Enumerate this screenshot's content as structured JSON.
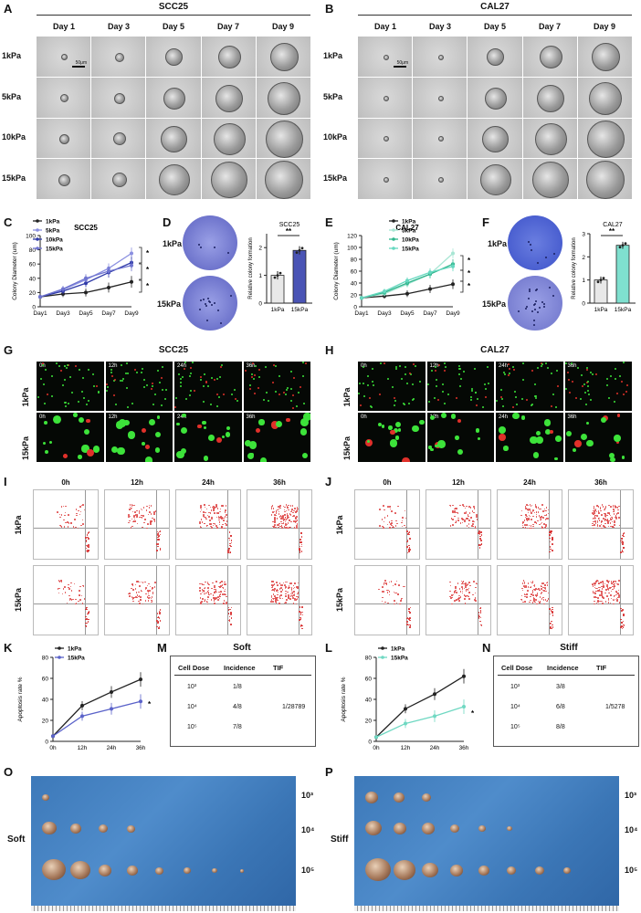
{
  "panels": {
    "A": "A",
    "B": "B",
    "C": "C",
    "D": "D",
    "E": "E",
    "F": "F",
    "G": "G",
    "H": "H",
    "I": "I",
    "J": "J",
    "K": "K",
    "L": "L",
    "M": "M",
    "N": "N",
    "O": "O",
    "P": "P"
  },
  "spheroid": {
    "left_title": "SCC25",
    "right_title": "CAL27",
    "days": [
      "Day 1",
      "Day 3",
      "Day 5",
      "Day 7",
      "Day 9"
    ],
    "stiffness": [
      "1kPa",
      "5kPa",
      "10kPa",
      "15kPa"
    ],
    "scale_label": "50μm"
  },
  "live_dead": {
    "left_title": "SCC25",
    "right_title": "CAL27",
    "rows": [
      "1kPa",
      "15kPa"
    ],
    "times": [
      "0h",
      "12h",
      "24h",
      "36h"
    ]
  },
  "flow": {
    "times": [
      "0h",
      "12h",
      "24h",
      "36h"
    ],
    "rows": [
      "1kPa",
      "15kPa"
    ]
  },
  "colony_images": {
    "top": "1kPa",
    "bottom": "15kPa"
  },
  "sig": {
    "star": "*",
    "double": "**"
  },
  "soft_table": {
    "title": "Soft",
    "headers": [
      "Cell Dose",
      "Incidence",
      "TIF"
    ],
    "rows": [
      [
        "10³",
        "1/8",
        ""
      ],
      [
        "10⁴",
        "4/8",
        "1/28789"
      ],
      [
        "10⁵",
        "7/8",
        ""
      ]
    ]
  },
  "stiff_table": {
    "title": "Stiff",
    "headers": [
      "Cell Dose",
      "Incidence",
      "TIF"
    ],
    "rows": [
      [
        "10³",
        "3/8",
        ""
      ],
      [
        "10⁴",
        "6/8",
        "1/5278"
      ],
      [
        "10⁵",
        "8/8",
        ""
      ]
    ]
  },
  "tumor_photos": {
    "left_label": "Soft",
    "right_label": "Stiff",
    "doses": [
      "10³",
      "10⁴",
      "10⁵"
    ]
  },
  "chart_data": [
    {
      "id": "C",
      "type": "line",
      "title": "SCC25",
      "xlabel": "",
      "ylabel": "Colony Diameter (um)",
      "categories": [
        "Day1",
        "Day3",
        "Day5",
        "Day7",
        "Day9"
      ],
      "ylim": [
        0,
        100
      ],
      "yticks": [
        0,
        20,
        40,
        60,
        80,
        100
      ],
      "series": [
        {
          "name": "1kPa",
          "values": [
            14,
            18,
            20,
            27,
            35
          ],
          "color": "#222222"
        },
        {
          "name": "5kPa",
          "values": [
            14,
            24,
            38,
            54,
            75
          ],
          "color": "#8a8fe0"
        },
        {
          "name": "10kPa",
          "values": [
            14,
            22,
            33,
            48,
            62
          ],
          "color": "#2f3aa8"
        },
        {
          "name": "15kPa",
          "values": [
            14,
            25,
            40,
            50,
            58
          ],
          "color": "#6f74cf"
        }
      ]
    },
    {
      "id": "D",
      "type": "bar",
      "title": "SCC25",
      "ylabel": "Relative colony formation",
      "categories": [
        "1kPa",
        "15kPa"
      ],
      "values": [
        1.0,
        1.9
      ],
      "ylim": [
        0,
        2.5
      ],
      "yticks": [
        0,
        1,
        2
      ],
      "colors": [
        "#e8e8e8",
        "#4a54b5"
      ]
    },
    {
      "id": "E",
      "type": "line",
      "title": "CAL27",
      "xlabel": "",
      "ylabel": "Colony Diameter (um)",
      "categories": [
        "Day1",
        "Day3",
        "Day5",
        "Day7",
        "Day9"
      ],
      "ylim": [
        0,
        120
      ],
      "yticks": [
        0,
        20,
        40,
        60,
        80,
        100,
        120
      ],
      "series": [
        {
          "name": "1kPa",
          "values": [
            15,
            18,
            22,
            30,
            38
          ],
          "color": "#222222"
        },
        {
          "name": "5kPa",
          "values": [
            15,
            22,
            38,
            55,
            90
          ],
          "color": "#a8e6d4"
        },
        {
          "name": "10kPa",
          "values": [
            15,
            24,
            40,
            55,
            72
          ],
          "color": "#2fb58c"
        },
        {
          "name": "15kPa",
          "values": [
            15,
            26,
            44,
            58,
            68
          ],
          "color": "#66d8c0"
        }
      ]
    },
    {
      "id": "F",
      "type": "bar",
      "title": "CAL27",
      "ylabel": "Relative colony formation",
      "categories": [
        "1kPa",
        "15kPa"
      ],
      "values": [
        1.0,
        2.5
      ],
      "ylim": [
        0,
        3
      ],
      "yticks": [
        0,
        1,
        2,
        3
      ],
      "colors": [
        "#e8e8e8",
        "#7fe0cf"
      ]
    },
    {
      "id": "K",
      "type": "line",
      "title": "",
      "xlabel": "",
      "ylabel": "Apoptosis rate %",
      "categories": [
        "0h",
        "12h",
        "24h",
        "36h"
      ],
      "ylim": [
        0,
        80
      ],
      "yticks": [
        0,
        20,
        40,
        60,
        80
      ],
      "series": [
        {
          "name": "1kPa",
          "values": [
            5,
            34,
            47,
            59
          ],
          "color": "#222222"
        },
        {
          "name": "15kPa",
          "values": [
            5,
            24,
            31,
            38
          ],
          "color": "#5a62c9"
        }
      ]
    },
    {
      "id": "L",
      "type": "line",
      "title": "",
      "xlabel": "",
      "ylabel": "Apoptosis rate %",
      "categories": [
        "0h",
        "12h",
        "24h",
        "36h"
      ],
      "ylim": [
        0,
        80
      ],
      "yticks": [
        0,
        20,
        40,
        60,
        80
      ],
      "series": [
        {
          "name": "1kPa",
          "values": [
            4,
            31,
            45,
            62
          ],
          "color": "#222222"
        },
        {
          "name": "15kPa",
          "values": [
            4,
            17,
            24,
            33
          ],
          "color": "#6fd8c2"
        }
      ]
    }
  ]
}
